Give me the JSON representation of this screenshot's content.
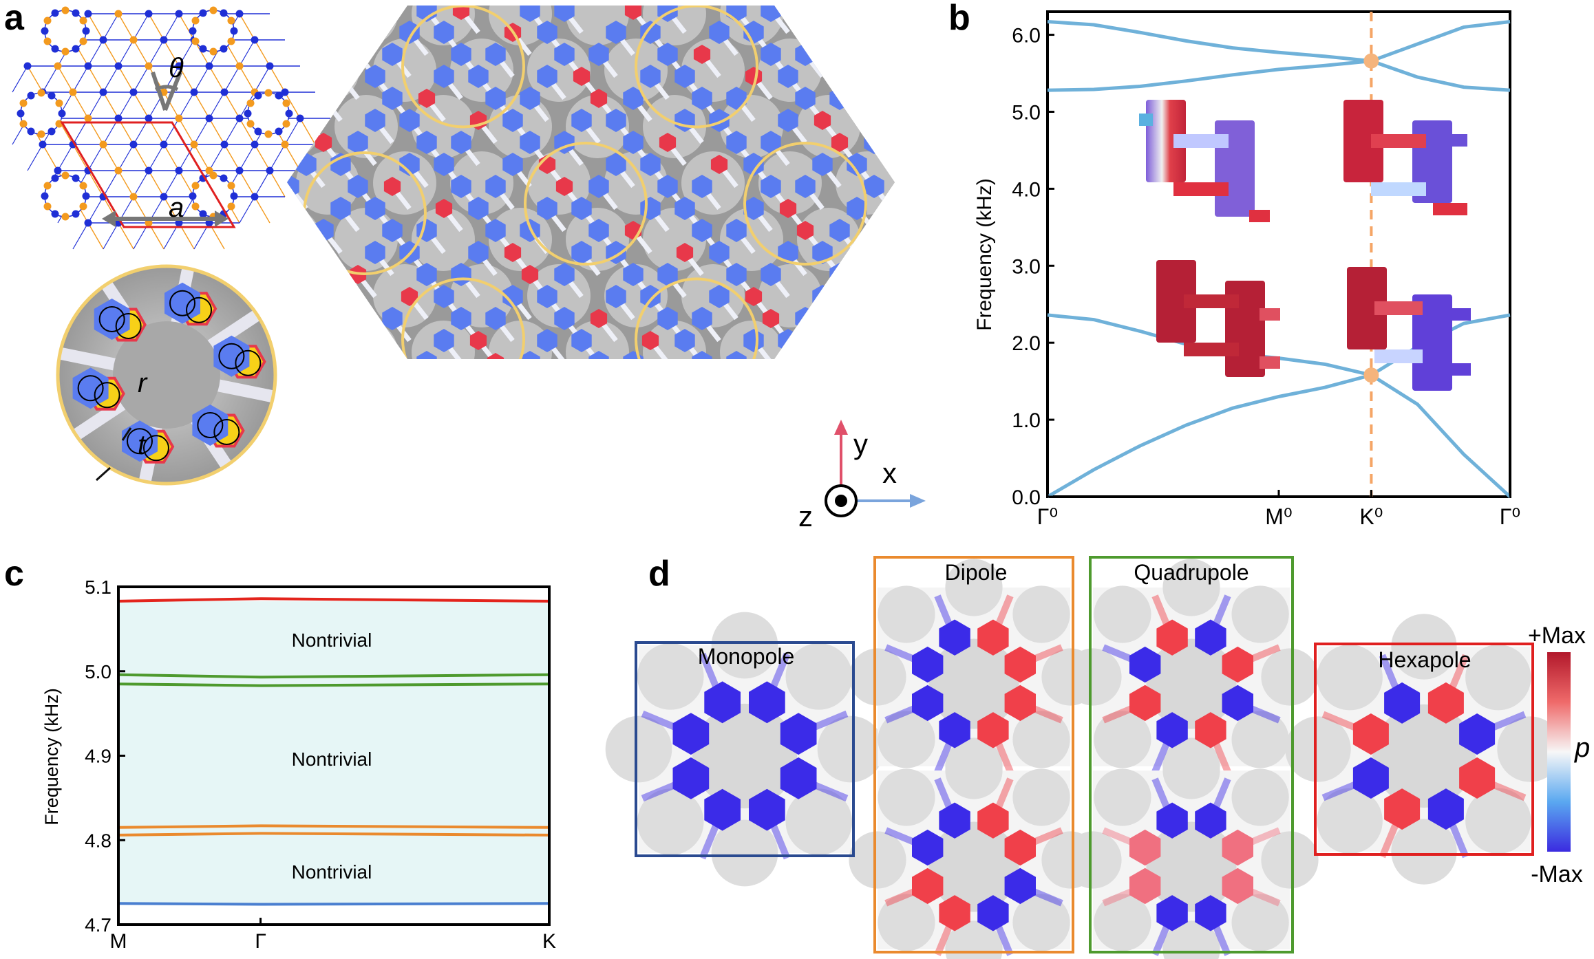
{
  "panels": {
    "a": {
      "letter": "a",
      "lattice_labels": {
        "theta": "θ",
        "a": "a"
      },
      "ring_labels": {
        "r": "r",
        "t": "t"
      },
      "axes": {
        "x": "x",
        "y": "y",
        "z": "z"
      },
      "colors": {
        "blue_site": "#1f2fd6",
        "orange_site": "#f39a1e",
        "red_cell": "#e02020",
        "ring_border": "#f2cf6e",
        "blue_post": "#5a7cf0",
        "red_post": "#e8384a"
      }
    },
    "b": {
      "letter": "b",
      "ylabel": "Frequency (kHz)",
      "xticks": [
        "Γ⁰",
        "M⁰",
        "K⁰",
        "Γ⁰"
      ],
      "yticks": [
        "0.0",
        "1.0",
        "2.0",
        "3.0",
        "4.0",
        "5.0",
        "6.0"
      ]
    },
    "c": {
      "letter": "c",
      "ylabel": "Frequency (kHz)",
      "xticks": [
        "M",
        "Γ",
        "K"
      ],
      "yticks": [
        "4.7",
        "4.8",
        "4.9",
        "5.0",
        "5.1"
      ],
      "gap_labels": [
        "Nontrivial",
        "Nontrivial",
        "Nontrivial"
      ]
    },
    "d": {
      "letter": "d",
      "modes": [
        "Monopole",
        "Dipole",
        "Quadrupole",
        "Hexapole"
      ],
      "colorbar": {
        "max": "+Max",
        "min": "-Max",
        "symbol": "p"
      }
    }
  },
  "chart_data": [
    {
      "type": "line",
      "panel": "b",
      "xlabel": "",
      "ylabel": "Frequency (kHz)",
      "categories": [
        "Γ⁰",
        "M⁰",
        "K⁰",
        "Γ⁰"
      ],
      "x": [
        0,
        0.5,
        0.7,
        1.0
      ],
      "ylim": [
        0,
        6.3
      ],
      "grid": false,
      "series": [
        {
          "x": [
            0,
            0.1,
            0.2,
            0.3,
            0.4,
            0.5,
            0.6,
            0.7,
            0.8,
            0.9,
            1.0
          ],
          "values": [
            0,
            0.35,
            0.66,
            0.93,
            1.15,
            1.3,
            1.42,
            1.58,
            1.2,
            0.55,
            0
          ]
        },
        {
          "x": [
            0,
            0.1,
            0.2,
            0.3,
            0.4,
            0.5,
            0.6,
            0.7,
            0.8,
            0.9,
            1.0
          ],
          "values": [
            2.36,
            2.3,
            2.15,
            1.98,
            1.86,
            1.8,
            1.72,
            1.58,
            1.95,
            2.25,
            2.36
          ]
        },
        {
          "x": [
            0,
            0.1,
            0.2,
            0.3,
            0.4,
            0.5,
            0.6,
            0.7,
            0.8,
            0.9,
            1.0
          ],
          "values": [
            5.28,
            5.29,
            5.33,
            5.4,
            5.48,
            5.55,
            5.6,
            5.66,
            5.45,
            5.32,
            5.28
          ]
        },
        {
          "x": [
            0,
            0.1,
            0.2,
            0.3,
            0.4,
            0.5,
            0.6,
            0.7,
            0.8,
            0.9,
            1.0
          ],
          "values": [
            6.17,
            6.13,
            6.03,
            5.92,
            5.83,
            5.77,
            5.72,
            5.66,
            5.88,
            6.1,
            6.17
          ]
        }
      ],
      "markers": [
        {
          "x": 0.7,
          "y": 5.66
        },
        {
          "x": 0.7,
          "y": 1.58
        }
      ],
      "colors": {
        "bands": "#6fb1d9",
        "marker": "#f5b47c",
        "kline": "#f5a565"
      }
    },
    {
      "type": "line",
      "panel": "c",
      "xlabel": "",
      "ylabel": "Frequency (kHz)",
      "categories": [
        "M",
        "Γ",
        "K"
      ],
      "ylim": [
        4.7,
        5.1
      ],
      "grid": false,
      "series": [
        {
          "color": "#e3241c",
          "x": [
            0,
            0.33,
            1
          ],
          "values": [
            5.083,
            5.086,
            5.083
          ]
        },
        {
          "color": "#4e9a2e",
          "x": [
            0,
            0.33,
            1
          ],
          "values": [
            4.996,
            4.993,
            4.996
          ]
        },
        {
          "color": "#4e9a2e",
          "x": [
            0,
            0.33,
            1
          ],
          "values": [
            4.985,
            4.983,
            4.985
          ]
        },
        {
          "color": "#ea8a2e",
          "x": [
            0,
            0.33,
            1
          ],
          "values": [
            4.815,
            4.817,
            4.815
          ]
        },
        {
          "color": "#ea8a2e",
          "x": [
            0,
            0.33,
            1
          ],
          "values": [
            4.806,
            4.808,
            4.806
          ]
        },
        {
          "color": "#4a7fd0",
          "x": [
            0,
            0.33,
            1
          ],
          "values": [
            4.725,
            4.724,
            4.725
          ]
        }
      ],
      "shaded_range": [
        4.725,
        5.083
      ],
      "shade_color": "#e6f6f6"
    }
  ]
}
